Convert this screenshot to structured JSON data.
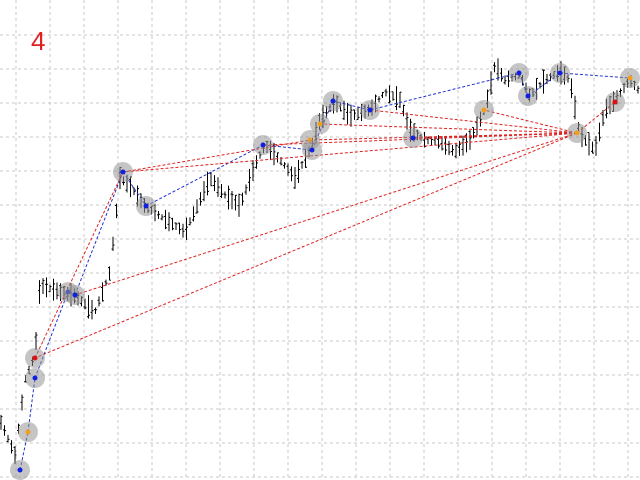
{
  "chart_label": "4"
}
